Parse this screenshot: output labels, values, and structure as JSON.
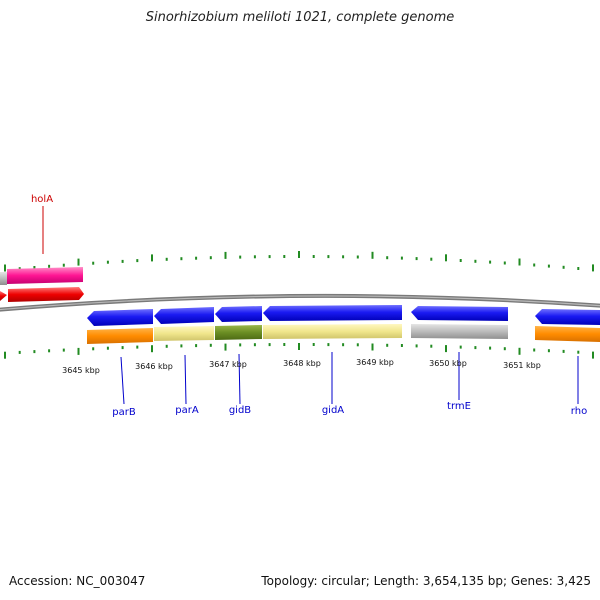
{
  "title": "Sinorhizobium meliloti 1021, complete genome",
  "footer": {
    "accession": "Accession: NC_003047",
    "summary": "Topology: circular; Length: 3,654,135 bp; Genes: 3,425"
  },
  "colors": {
    "backbone": "#808080",
    "tick": "#228b22",
    "gene_blue": "#1414ee",
    "gene_orange": "#ff8c00",
    "gene_pale": "#f0e68c",
    "gene_olive": "#6b8e23",
    "gene_gray": "#bbbbbb",
    "gene_pink": "#ff1493",
    "gene_red": "#ee0000",
    "label_blue": "#0000cc",
    "label_red": "#cc0000"
  },
  "scale_labels": [
    "3645 kbp",
    "3646 kbp",
    "3647 kbp",
    "3648 kbp",
    "3649 kbp",
    "3650 kbp",
    "3651 kbp"
  ],
  "gene_labels": [
    "holA",
    "parB",
    "parA",
    "gidB",
    "gidA",
    "trmE",
    "rho"
  ]
}
